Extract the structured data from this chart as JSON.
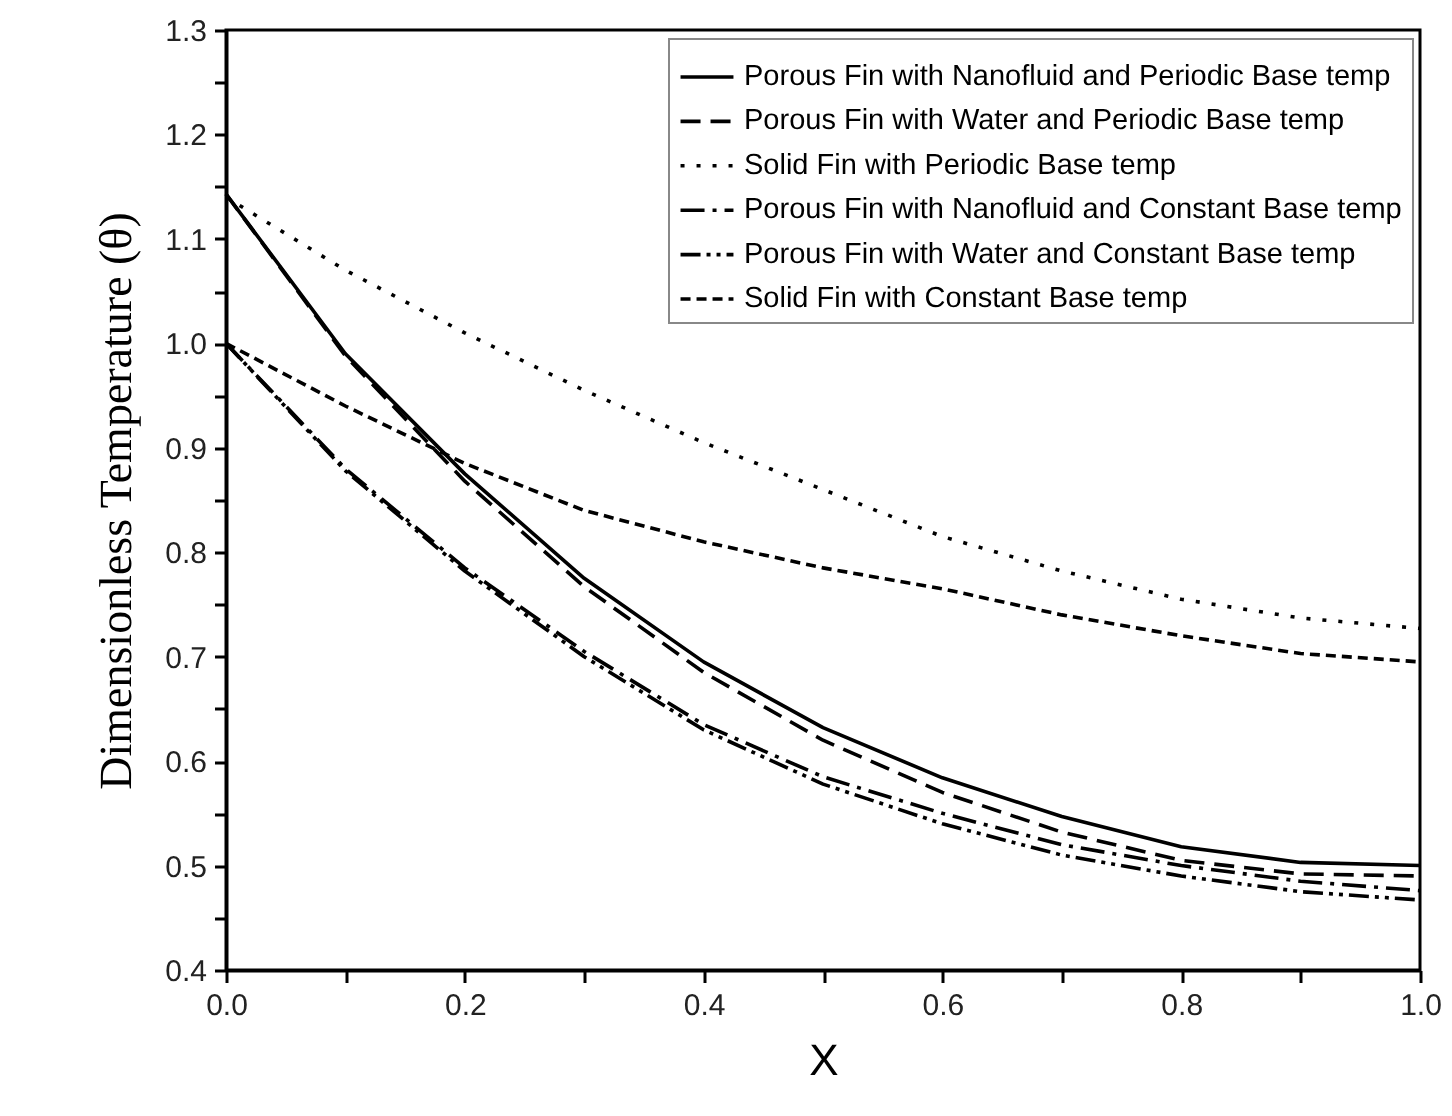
{
  "chart_data": {
    "type": "line",
    "xlabel": "X",
    "ylabel": "Dimensionless Temperature (θ)",
    "x": [
      0,
      0.1,
      0.2,
      0.3,
      0.4,
      0.5,
      0.6,
      0.7,
      0.8,
      0.9,
      1.0
    ],
    "series": [
      {
        "name": "Porous Fin with Nanofluid and Periodic Base temp",
        "color": "#000000",
        "line_style": "solid",
        "values": [
          1.143,
          0.99,
          0.875,
          0.775,
          0.695,
          0.632,
          0.584,
          0.547,
          0.518,
          0.503,
          0.5
        ]
      },
      {
        "name": "Porous Fin with Water and Periodic Base temp",
        "color": "#000000",
        "line_style": "dashed",
        "values": [
          1.143,
          0.988,
          0.868,
          0.767,
          0.685,
          0.62,
          0.57,
          0.532,
          0.505,
          0.492,
          0.49
        ]
      },
      {
        "name": "Solid Fin with Periodic Base temp",
        "color": "#000000",
        "line_style": "dotted",
        "values": [
          1.14,
          1.07,
          1.01,
          0.955,
          0.905,
          0.86,
          0.815,
          0.782,
          0.755,
          0.737,
          0.727
        ]
      },
      {
        "name": "Porous Fin with Nanofluid and Constant Base temp",
        "color": "#000000",
        "line_style": "dashdot",
        "values": [
          1.0,
          0.88,
          0.785,
          0.705,
          0.635,
          0.585,
          0.55,
          0.52,
          0.5,
          0.485,
          0.476
        ]
      },
      {
        "name": "Porous Fin with Water and Constant Base temp",
        "color": "#000000",
        "line_style": "dashdotdot",
        "values": [
          1.0,
          0.878,
          0.782,
          0.7,
          0.63,
          0.578,
          0.54,
          0.51,
          0.49,
          0.475,
          0.467
        ]
      },
      {
        "name": "Solid Fin with Constant Base temp",
        "color": "#000000",
        "line_style": "shortdash",
        "values": [
          1.0,
          0.94,
          0.885,
          0.84,
          0.81,
          0.785,
          0.765,
          0.74,
          0.72,
          0.703,
          0.695
        ]
      }
    ],
    "xlim": [
      0,
      1.0
    ],
    "xticks": [
      {
        "value": 0,
        "label": "0.0"
      },
      {
        "value": 0.1,
        "label": null
      },
      0.2,
      {
        "value": 0.3,
        "label": null
      },
      0.4,
      {
        "value": 0.5,
        "label": null
      },
      0.6,
      {
        "value": 0.7,
        "label": null
      },
      0.8,
      {
        "value": 0.9,
        "label": null
      },
      {
        "value": 1.0,
        "label": "1.0"
      }
    ],
    "ylim": [
      0.4,
      1.3
    ],
    "yticks": [
      0.4,
      {
        "value": 0.45,
        "label": null
      },
      0.5,
      {
        "value": 0.55,
        "label": null
      },
      0.6,
      {
        "value": 0.65,
        "label": null
      },
      0.7,
      {
        "value": 0.75,
        "label": null
      },
      0.8,
      {
        "value": 0.85,
        "label": null
      },
      0.9,
      {
        "value": 0.95,
        "label": null
      },
      {
        "value": 1.0,
        "label": "1.0"
      },
      {
        "value": 1.05,
        "label": null
      },
      1.1,
      {
        "value": 1.15,
        "label": null
      },
      1.2,
      {
        "value": 1.25,
        "label": null
      },
      1.3
    ],
    "legend": "top right",
    "grid": false
  }
}
